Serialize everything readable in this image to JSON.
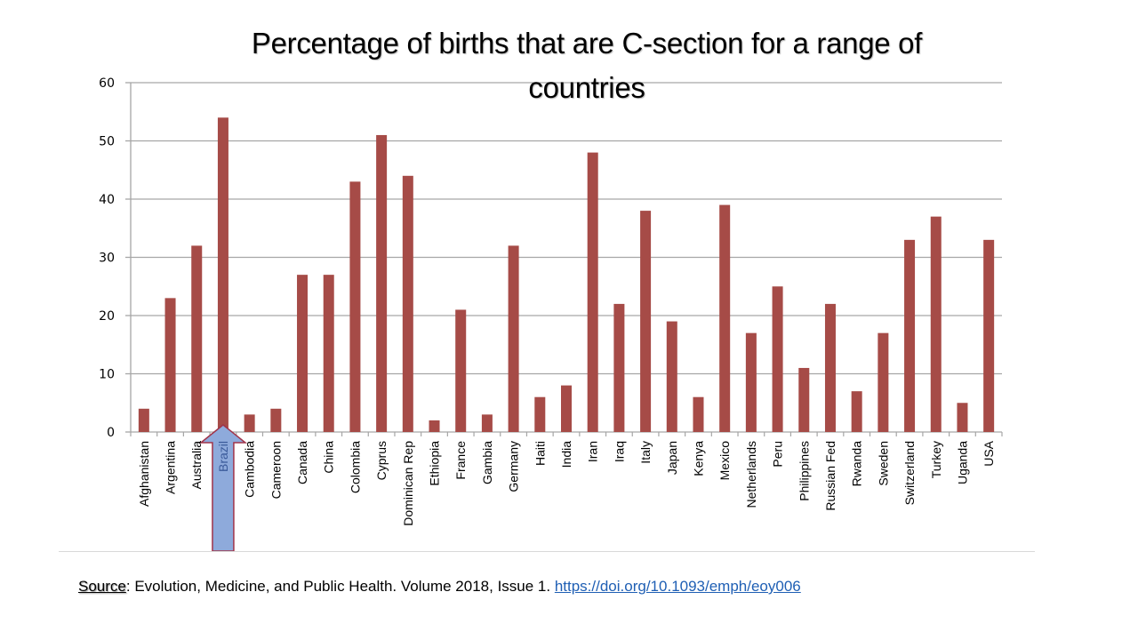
{
  "slide": {
    "title_line1": "Percentage of births that are C-section for a range of",
    "title_line2": "countries",
    "source_label": "Source",
    "source_text": ": Evolution, Medicine, and Public Health. Volume 2018, Issue 1. ",
    "source_link": "https://doi.org/10.1093/emph/eoy006",
    "highlight": {
      "category": "Brazil",
      "shape": "up-arrow",
      "fill_color": "#8eaadb",
      "stroke_color": "#a0344a"
    }
  },
  "colors": {
    "bar": "#a64b47",
    "grid": "#a6a6a6",
    "axis_text": "#000000"
  },
  "chart_data": {
    "type": "bar",
    "title": "Percentage of births that are C-section for a range of countries",
    "xlabel": "",
    "ylabel": "",
    "ylim": [
      0,
      60
    ],
    "yticks": [
      0,
      10,
      20,
      30,
      40,
      50,
      60
    ],
    "grid": true,
    "legend": "none",
    "categories": [
      "Afghanistan",
      "Argentina",
      "Australia",
      "Brazil",
      "Cambodia",
      "Cameroon",
      "Canada",
      "China",
      "Colombia",
      "Cyprus",
      "Dominican Rep",
      "Ethiopia",
      "France",
      "Gambia",
      "Germany",
      "Haiti",
      "India",
      "Iran",
      "Iraq",
      "Italy",
      "Japan",
      "Kenya",
      "Mexico",
      "Netherlands",
      "Peru",
      "Philippines",
      "Russian Fed",
      "Rwanda",
      "Sweden",
      "Switzerland",
      "Turkey",
      "Uganda",
      "USA"
    ],
    "values": [
      4,
      23,
      32,
      54,
      3,
      4,
      27,
      27,
      43,
      51,
      44,
      2,
      21,
      3,
      32,
      6,
      8,
      48,
      22,
      38,
      19,
      6,
      39,
      17,
      25,
      11,
      22,
      7,
      17,
      33,
      37,
      5,
      33
    ]
  }
}
